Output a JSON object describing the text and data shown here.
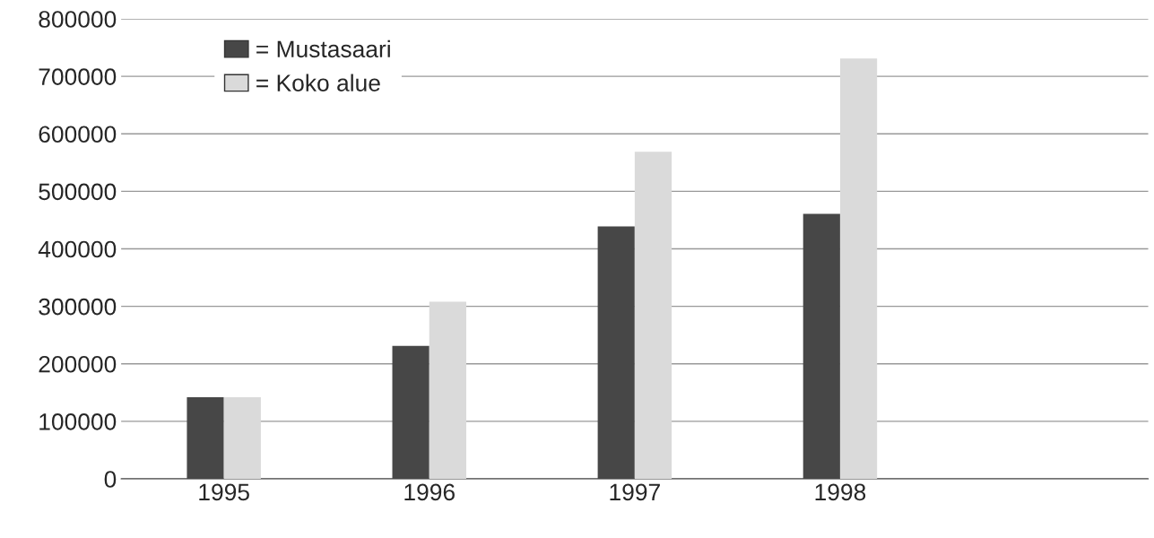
{
  "chart_data": {
    "type": "bar",
    "categories": [
      "1995",
      "1996",
      "1997",
      "1998",
      null
    ],
    "series": [
      {
        "name": "= Mustasaari",
        "color": "#474747",
        "values": [
          142000,
          231000,
          439000,
          461000,
          null
        ]
      },
      {
        "name": "= Koko alue",
        "color": "#dadada",
        "values": [
          142000,
          308000,
          569000,
          731000,
          null
        ]
      }
    ],
    "ylim": [
      0,
      800000
    ],
    "yticks": [
      0,
      100000,
      200000,
      300000,
      400000,
      500000,
      600000,
      700000,
      800000
    ],
    "grid": "y",
    "legend": "top left"
  }
}
